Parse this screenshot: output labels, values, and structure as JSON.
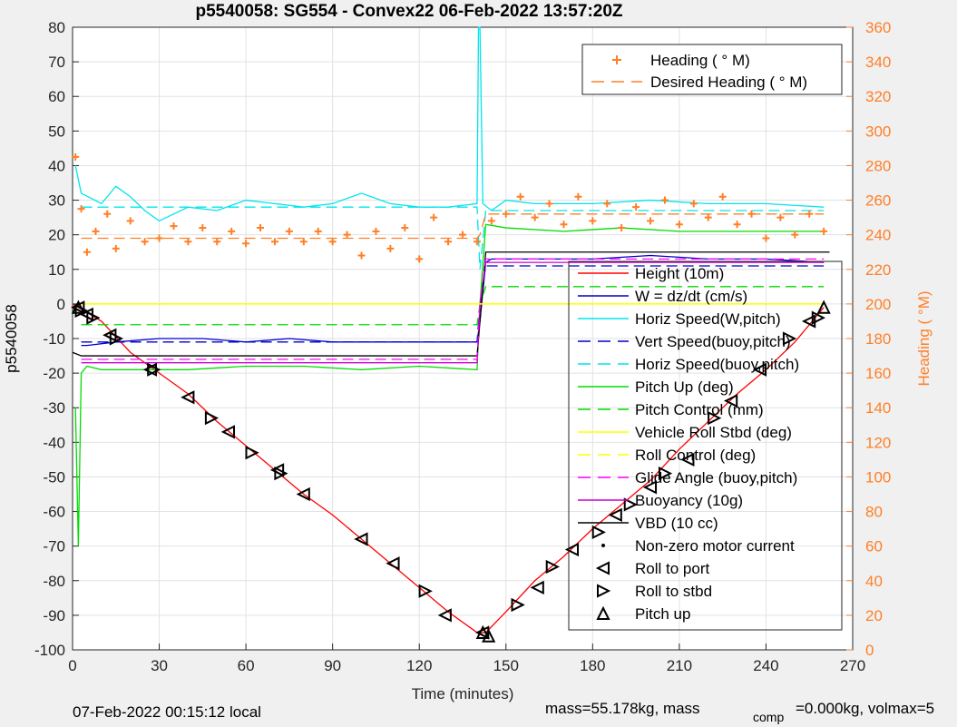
{
  "chart_data": {
    "type": "line",
    "title": "p5540058: SG554 - Convex22 06-Feb-2022 13:57:20Z",
    "xlabel": "Time (minutes)",
    "ylabel": "p5540058",
    "ylabel_right": "Heading (  °M)",
    "xlim": [
      0,
      270
    ],
    "ylim": [
      -100,
      80
    ],
    "ylim_right": [
      0,
      360
    ],
    "xticks": [
      0,
      30,
      60,
      90,
      120,
      150,
      180,
      210,
      240,
      270
    ],
    "yticks": [
      80,
      70,
      60,
      50,
      40,
      30,
      20,
      10,
      0,
      -10,
      -20,
      -30,
      -40,
      -50,
      -60,
      -70,
      -80,
      -90,
      -100
    ],
    "yticks_right": [
      360,
      340,
      320,
      300,
      280,
      260,
      240,
      220,
      200,
      180,
      160,
      140,
      120,
      100,
      80,
      60,
      40,
      20,
      0
    ],
    "grid": true,
    "heading_legend": [
      {
        "label": "Heading (  ° M)",
        "color": "#ff7f27",
        "style": "plus"
      },
      {
        "label": "Desired Heading (    ° M)",
        "color": "#ff7f27",
        "style": "dashed"
      }
    ],
    "legend": [
      {
        "label": "Height (10m)",
        "color": "#ff0000",
        "style": "solid"
      },
      {
        "label": "W = dz/dt (cm/s)",
        "color": "#0000cc",
        "style": "solid"
      },
      {
        "label": "Horiz Speed(W,pitch)",
        "color": "#00e5ee",
        "style": "solid"
      },
      {
        "label": "Vert Speed(buoy,pitch)",
        "color": "#0000cc",
        "style": "dashed"
      },
      {
        "label": "Horiz Speed(buoy,pitch)",
        "color": "#00e5ee",
        "style": "dashed"
      },
      {
        "label": "Pitch Up (deg)",
        "color": "#00dd00",
        "style": "solid"
      },
      {
        "label": "Pitch Control (mm)",
        "color": "#00dd00",
        "style": "dashed"
      },
      {
        "label": "Vehicle Roll Stbd (deg)",
        "color": "#ffff00",
        "style": "solid"
      },
      {
        "label": "Roll Control (deg)",
        "color": "#ffff00",
        "style": "dashed"
      },
      {
        "label": "Glide Angle (buoy,pitch)",
        "color": "#ff00ff",
        "style": "dashed"
      },
      {
        "label": "Buoyancy (10g)",
        "color": "#cc00cc",
        "style": "solid"
      },
      {
        "label": "VBD (10 cc)",
        "color": "#000000",
        "style": "solid"
      },
      {
        "label": "Non-zero motor current",
        "color": "#000000",
        "style": "dot"
      },
      {
        "label": "Roll to port",
        "color": "#000000",
        "style": "tri-left"
      },
      {
        "label": "Roll to stbd",
        "color": "#000000",
        "style": "tri-right"
      },
      {
        "label": "Pitch up",
        "color": "#000000",
        "style": "tri-up"
      }
    ],
    "series": [
      {
        "name": "Height (10m)",
        "axis": "left",
        "x": [
          0,
          2,
          10,
          20,
          30,
          40,
          50,
          60,
          70,
          80,
          90,
          100,
          110,
          120,
          130,
          140,
          143,
          150,
          160,
          170,
          180,
          190,
          200,
          210,
          220,
          230,
          240,
          250,
          260
        ],
        "y": [
          0,
          -1,
          -5,
          -14,
          -20,
          -26,
          -34,
          -41,
          -48,
          -55,
          -61,
          -68,
          -75,
          -82,
          -89,
          -95,
          -95,
          -89,
          -80,
          -73,
          -65,
          -58,
          -51,
          -42,
          -34,
          -26,
          -19,
          -11,
          -1
        ]
      },
      {
        "name": "W = dz/dt (cm/s)",
        "axis": "left",
        "x": [
          3,
          5,
          15,
          30,
          45,
          60,
          75,
          90,
          105,
          120,
          135,
          140,
          141,
          143,
          145,
          160,
          180,
          200,
          220,
          240,
          260
        ],
        "y": [
          -12,
          -12,
          -11,
          -10,
          -10,
          -11,
          -10,
          -11,
          -11,
          -11,
          -11,
          -11,
          -5,
          12,
          13,
          13,
          13,
          14,
          13,
          13,
          12
        ]
      },
      {
        "name": "Horiz Speed(W,pitch)",
        "axis": "left",
        "x": [
          1,
          3,
          10,
          15,
          20,
          25,
          30,
          40,
          50,
          60,
          70,
          80,
          90,
          100,
          110,
          120,
          130,
          140,
          140.5,
          141,
          142,
          145,
          150,
          160,
          180,
          200,
          220,
          240,
          260
        ],
        "y": [
          40,
          32,
          29,
          34,
          31,
          27,
          24,
          28,
          27,
          30,
          29,
          28,
          29,
          32,
          29,
          28,
          28,
          29,
          80,
          80,
          29,
          27,
          30,
          29,
          29,
          30,
          29,
          29,
          28
        ]
      },
      {
        "name": "Horiz Speed(buoy,pitch)",
        "axis": "left",
        "x": [
          3,
          140,
          141,
          143,
          260
        ],
        "y": [
          28,
          28,
          10,
          27,
          27
        ]
      },
      {
        "name": "Vert Speed(buoy,pitch)",
        "axis": "left",
        "x": [
          3,
          140,
          141,
          143,
          260
        ],
        "y": [
          -11,
          -11,
          0,
          11,
          11
        ]
      },
      {
        "name": "Pitch Up (deg)",
        "axis": "left",
        "x": [
          1,
          2,
          3,
          5,
          10,
          20,
          40,
          60,
          80,
          100,
          120,
          140,
          141,
          143,
          150,
          170,
          190,
          210,
          230,
          250,
          260
        ],
        "y": [
          -30,
          -70,
          -20,
          -18,
          -19,
          -19,
          -19,
          -18,
          -18,
          -19,
          -18,
          -19,
          0,
          23,
          22,
          21,
          22,
          21,
          21,
          21,
          21
        ]
      },
      {
        "name": "Pitch Control (mm)",
        "axis": "left",
        "x": [
          3,
          140,
          141,
          143,
          260
        ],
        "y": [
          -6,
          -6,
          0,
          5,
          5
        ]
      },
      {
        "name": "Buoyancy (10g)",
        "axis": "left",
        "x": [
          3,
          140,
          141,
          143,
          260
        ],
        "y": [
          -17,
          -17,
          0,
          12,
          12
        ]
      },
      {
        "name": "VBD (10 cc)",
        "axis": "left",
        "x": [
          0,
          3,
          140,
          143,
          262
        ],
        "y": [
          -14,
          -15,
          -15,
          15,
          15
        ]
      },
      {
        "name": "Glide Angle (buoy,pitch)",
        "axis": "left",
        "x": [
          3,
          140,
          141,
          143,
          260
        ],
        "y": [
          -16,
          -16,
          0,
          13,
          13
        ]
      },
      {
        "name": "Vehicle Roll Stbd (deg)",
        "axis": "left",
        "x": [
          3,
          260
        ],
        "y": [
          0,
          0
        ]
      },
      {
        "name": "Roll Control (deg)",
        "axis": "left",
        "x": [
          3,
          260
        ],
        "y": [
          0,
          0
        ]
      },
      {
        "name": "Heading (  ° M)",
        "axis": "right",
        "x": [
          1,
          3,
          5,
          8,
          12,
          15,
          20,
          25,
          30,
          35,
          40,
          45,
          50,
          55,
          60,
          65,
          70,
          75,
          80,
          85,
          90,
          95,
          100,
          105,
          110,
          115,
          120,
          125,
          130,
          135,
          140,
          145,
          150,
          155,
          160,
          165,
          170,
          175,
          180,
          185,
          190,
          195,
          200,
          205,
          210,
          215,
          220,
          225,
          230,
          235,
          240,
          245,
          250,
          255,
          260
        ],
        "y": [
          285,
          255,
          230,
          242,
          252,
          232,
          248,
          236,
          238,
          245,
          236,
          244,
          236,
          242,
          235,
          244,
          236,
          242,
          236,
          242,
          236,
          240,
          228,
          242,
          232,
          244,
          226,
          250,
          236,
          240,
          236,
          248,
          252,
          262,
          250,
          258,
          246,
          262,
          248,
          258,
          244,
          256,
          248,
          260,
          246,
          258,
          250,
          262,
          246,
          252,
          238,
          250,
          240,
          252,
          242
        ]
      },
      {
        "name": "Desired Heading (    ° M)",
        "axis": "right",
        "x": [
          3,
          140,
          141,
          143,
          260
        ],
        "y": [
          238,
          238,
          240,
          252,
          252
        ]
      }
    ],
    "markers": {
      "roll_to_port": {
        "x": [
          2,
          5,
          13,
          27,
          40,
          54,
          71,
          80,
          100,
          111,
          129,
          142,
          161,
          173,
          188,
          200,
          213,
          228,
          238,
          255
        ],
        "y": [
          -1,
          -3,
          -9,
          -19,
          -27,
          -37,
          -48,
          -55,
          -68,
          -75,
          -90,
          -95,
          -82,
          -71,
          -61,
          -53,
          -45,
          -28,
          -19,
          -5
        ]
      },
      "roll_to_stbd": {
        "x": [
          3,
          7,
          15,
          28,
          48,
          62,
          72,
          122,
          154,
          166,
          182,
          193,
          205,
          222,
          248,
          258
        ],
        "y": [
          -2,
          -4,
          -10,
          -19,
          -33,
          -43,
          -49,
          -83,
          -87,
          -76,
          -66,
          -58,
          -49,
          -33,
          -10,
          -4
        ]
      },
      "pitch_up": {
        "x": [
          2,
          142,
          144,
          260
        ],
        "y": [
          -1,
          -95,
          -96,
          -1
        ]
      }
    }
  },
  "footer": {
    "local_time": "07-Feb-2022 00:15:12 local",
    "mass_text": "mass=55.178kg, mass",
    "comp_subscript": "comp",
    "volmax_text": "=0.000kg, volmax=5"
  }
}
